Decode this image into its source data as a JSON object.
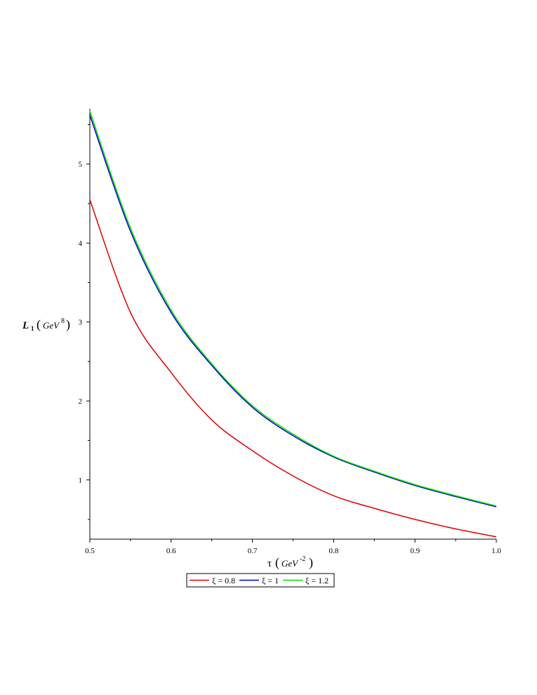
{
  "chart_data": {
    "type": "line",
    "xlabel": "τ",
    "xlabel_unit_base": "GeV",
    "xlabel_unit_exp": "-2",
    "ylabel": "L",
    "ylabel_subscript": "1",
    "ylabel_unit_base": "GeV",
    "ylabel_unit_exp": "8",
    "xlim": [
      0.5,
      1.0
    ],
    "ylim": [
      0.25,
      5.7
    ],
    "x_ticks": [
      0.5,
      0.6,
      0.7,
      0.8,
      0.9,
      1.0
    ],
    "x_tick_labels": [
      "0.5",
      "0.6",
      "0.7",
      "0.8",
      "0.9",
      "1.0"
    ],
    "y_ticks": [
      1,
      2,
      3,
      4,
      5
    ],
    "y_tick_labels": [
      "1",
      "2",
      "3",
      "4",
      "5"
    ],
    "grid": false,
    "legend_placement": "bottom",
    "x": [
      0.5,
      0.55,
      0.6,
      0.65,
      0.7,
      0.75,
      0.8,
      0.85,
      0.9,
      0.95,
      1.0
    ],
    "series": [
      {
        "name": "ξ = 0.8",
        "color": "#e00000",
        "values": [
          4.55,
          3.12,
          2.36,
          1.76,
          1.37,
          1.05,
          0.8,
          0.64,
          0.5,
          0.38,
          0.28
        ]
      },
      {
        "name": "ξ = 1",
        "color": "#0000d0",
        "values": [
          5.62,
          4.15,
          3.12,
          2.45,
          1.92,
          1.56,
          1.29,
          1.1,
          0.93,
          0.79,
          0.66
        ]
      },
      {
        "name": "ξ = 1.2",
        "color": "#00dd00",
        "values": [
          5.67,
          4.19,
          3.15,
          2.47,
          1.94,
          1.58,
          1.3,
          1.11,
          0.94,
          0.8,
          0.67
        ]
      }
    ]
  }
}
